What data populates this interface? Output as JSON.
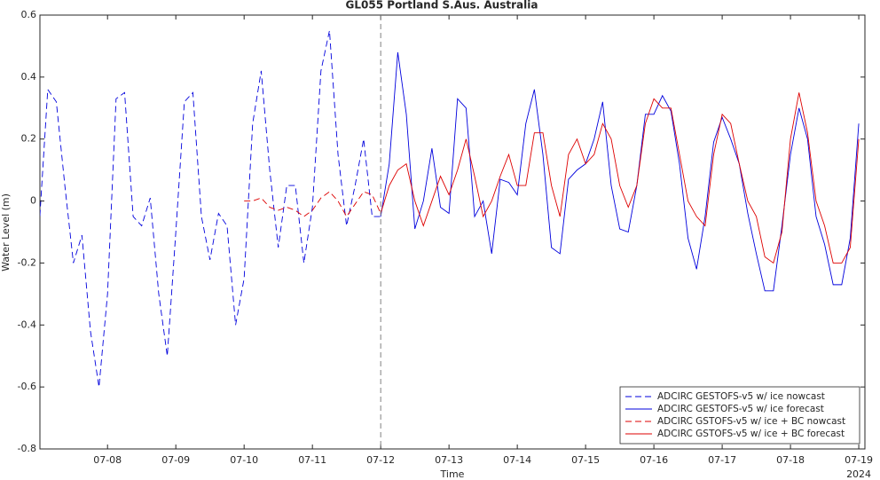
{
  "chart_data": {
    "type": "line",
    "title": "GL055 Portland S.Aus. Australia",
    "xlabel": "Time",
    "ylabel": "Water Level (m)",
    "x_axis_year": "2024",
    "x": [
      7,
      7.125,
      7.25,
      7.375,
      7.5,
      7.625,
      7.75,
      7.875,
      8,
      8.125,
      8.25,
      8.375,
      8.5,
      8.625,
      8.75,
      8.875,
      9,
      9.125,
      9.25,
      9.375,
      9.5,
      9.625,
      9.75,
      9.875,
      10,
      10.125,
      10.25,
      10.375,
      10.5,
      10.625,
      10.75,
      10.875,
      11,
      11.125,
      11.25,
      11.375,
      11.5,
      11.625,
      11.75,
      11.875,
      12,
      12.125,
      12.25,
      12.375,
      12.5,
      12.625,
      12.75,
      12.875,
      13,
      13.125,
      13.25,
      13.375,
      13.5,
      13.625,
      13.75,
      13.875,
      14,
      14.125,
      14.25,
      14.375,
      14.5,
      14.625,
      14.75,
      14.875,
      15,
      15.125,
      15.25,
      15.375,
      15.5,
      15.625,
      15.75,
      15.875,
      16,
      16.125,
      16.25,
      16.375,
      16.5,
      16.625,
      16.75,
      16.875,
      17,
      17.125,
      17.25,
      17.375,
      17.5,
      17.625,
      17.75,
      17.875,
      18,
      18.125,
      18.25,
      18.375,
      18.5,
      18.625,
      18.75,
      18.875,
      19
    ],
    "forecast_start": 12,
    "series": [
      {
        "name": "ADCIRC GESTOFS-v5 w/ ice nowcast",
        "color": "#0000dd",
        "dashed": true,
        "values": [
          -0.08,
          0.36,
          0.32,
          0.05,
          -0.2,
          -0.11,
          -0.42,
          -0.6,
          -0.3,
          0.33,
          0.35,
          -0.05,
          -0.08,
          0.01,
          -0.3,
          -0.5,
          -0.1,
          0.32,
          0.35,
          -0.05,
          -0.19,
          -0.04,
          -0.08,
          -0.4,
          -0.25,
          0.25,
          0.42,
          0.1,
          -0.15,
          0.05,
          0.05,
          -0.2,
          -0.02,
          0.42,
          0.55,
          0.15,
          -0.08,
          0.05,
          0.2,
          -0.05,
          -0.05,
          null,
          null,
          null,
          null,
          null,
          null,
          null,
          null,
          null,
          null,
          null,
          null,
          null,
          null,
          null,
          null,
          null,
          null,
          null,
          null,
          null,
          null,
          null,
          null,
          null,
          null,
          null,
          null,
          null,
          null,
          null,
          null,
          null,
          null,
          null,
          null,
          null,
          null,
          null,
          null,
          null,
          null,
          null,
          null,
          null,
          null,
          null,
          null,
          null,
          null,
          null,
          null,
          null,
          null,
          null,
          null
        ]
      },
      {
        "name": "ADCIRC GESTOFS-v5 w/ ice forecast",
        "color": "#0000dd",
        "dashed": false,
        "values": [
          null,
          null,
          null,
          null,
          null,
          null,
          null,
          null,
          null,
          null,
          null,
          null,
          null,
          null,
          null,
          null,
          null,
          null,
          null,
          null,
          null,
          null,
          null,
          null,
          null,
          null,
          null,
          null,
          null,
          null,
          null,
          null,
          null,
          null,
          null,
          null,
          null,
          null,
          null,
          null,
          -0.05,
          0.12,
          0.48,
          0.28,
          -0.09,
          0.0,
          0.17,
          -0.02,
          -0.04,
          0.33,
          0.3,
          -0.05,
          0.0,
          -0.17,
          0.07,
          0.06,
          0.02,
          0.25,
          0.36,
          0.15,
          -0.15,
          -0.17,
          0.07,
          0.1,
          0.12,
          0.2,
          0.32,
          0.05,
          -0.09,
          -0.1,
          0.05,
          0.28,
          0.28,
          0.34,
          0.29,
          0.12,
          -0.12,
          -0.22,
          -0.05,
          0.19,
          0.27,
          0.2,
          0.12,
          -0.04,
          -0.17,
          -0.29,
          -0.29,
          -0.08,
          0.15,
          0.3,
          0.2,
          -0.05,
          -0.14,
          -0.27,
          -0.27,
          -0.12,
          0.25
        ]
      },
      {
        "name": "ADCIRC GSTOFS-v5 w/ ice + BC nowcast",
        "color": "#dd0000",
        "dashed": true,
        "values": [
          null,
          null,
          null,
          null,
          null,
          null,
          null,
          null,
          null,
          null,
          null,
          null,
          null,
          null,
          null,
          null,
          null,
          null,
          null,
          null,
          null,
          null,
          null,
          null,
          0.0,
          0.0,
          0.01,
          -0.02,
          -0.03,
          -0.02,
          -0.03,
          -0.05,
          -0.03,
          0.01,
          0.03,
          0.0,
          -0.05,
          -0.01,
          0.03,
          0.02,
          -0.04,
          null,
          null,
          null,
          null,
          null,
          null,
          null,
          null,
          null,
          null,
          null,
          null,
          null,
          null,
          null,
          null,
          null,
          null,
          null,
          null,
          null,
          null,
          null,
          null,
          null,
          null,
          null,
          null,
          null,
          null,
          null,
          null,
          null,
          null,
          null,
          null,
          null,
          null,
          null,
          null,
          null,
          null,
          null,
          null,
          null,
          null,
          null,
          null,
          null,
          null,
          null,
          null,
          null,
          null,
          null,
          null
        ]
      },
      {
        "name": "ADCIRC GSTOFS-v5 w/ ice + BC forecast",
        "color": "#dd0000",
        "dashed": false,
        "values": [
          null,
          null,
          null,
          null,
          null,
          null,
          null,
          null,
          null,
          null,
          null,
          null,
          null,
          null,
          null,
          null,
          null,
          null,
          null,
          null,
          null,
          null,
          null,
          null,
          null,
          null,
          null,
          null,
          null,
          null,
          null,
          null,
          null,
          null,
          null,
          null,
          null,
          null,
          null,
          null,
          -0.04,
          0.05,
          0.1,
          0.12,
          0.0,
          -0.08,
          0.0,
          0.08,
          0.02,
          0.1,
          0.2,
          0.08,
          -0.05,
          0.0,
          0.08,
          0.15,
          0.05,
          0.05,
          0.22,
          0.22,
          0.05,
          -0.05,
          0.15,
          0.2,
          0.12,
          0.15,
          0.25,
          0.2,
          0.05,
          -0.02,
          0.05,
          0.25,
          0.33,
          0.3,
          0.3,
          0.15,
          0.0,
          -0.05,
          -0.08,
          0.15,
          0.28,
          0.25,
          0.12,
          0.0,
          -0.05,
          -0.18,
          -0.2,
          -0.1,
          0.2,
          0.35,
          0.22,
          0.0,
          -0.08,
          -0.2,
          -0.2,
          -0.15,
          0.2
        ]
      }
    ],
    "xlim": [
      7.01,
      19.09
    ],
    "ylim": [
      -0.8,
      0.6
    ],
    "xticks": [
      {
        "value": 8,
        "label": "07-08"
      },
      {
        "value": 9,
        "label": "07-09"
      },
      {
        "value": 10,
        "label": "07-10"
      },
      {
        "value": 11,
        "label": "07-11"
      },
      {
        "value": 12,
        "label": "07-12"
      },
      {
        "value": 13,
        "label": "07-13"
      },
      {
        "value": 14,
        "label": "07-14"
      },
      {
        "value": 15,
        "label": "07-15"
      },
      {
        "value": 16,
        "label": "07-16"
      },
      {
        "value": 17,
        "label": "07-17"
      },
      {
        "value": 18,
        "label": "07-18"
      },
      {
        "value": 19,
        "label": "07-19"
      }
    ],
    "yticks": [
      0.6,
      0.4,
      0.2,
      0,
      -0.2,
      -0.4,
      -0.6,
      -0.8
    ],
    "grid": false,
    "legend": "lower right"
  }
}
